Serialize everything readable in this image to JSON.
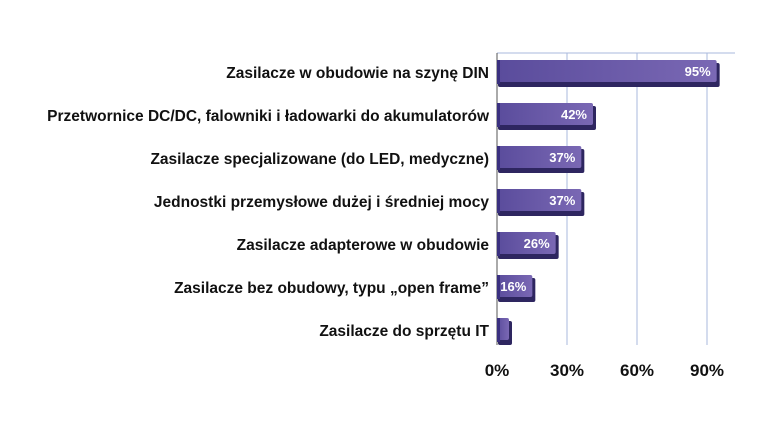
{
  "chart_data": {
    "type": "bar",
    "orientation": "horizontal",
    "title": "",
    "xlabel": "",
    "ylabel": "",
    "categories": [
      "Zasilacze w obudowie na szynę DIN",
      "Przetwornice DC/DC, falowniki i ładowarki do akumulatorów",
      "Zasilacze specjalizowane (do LED, medyczne)",
      "Jednostki przemysłowe dużej i średniej mocy",
      "Zasilacze adapterowe w obudowie",
      "Zasilacze bez obudowy, typu „open frame”",
      "Zasilacze do sprzętu IT"
    ],
    "values": [
      95,
      42,
      37,
      37,
      26,
      16,
      6
    ],
    "data_labels": [
      "95%",
      "42%",
      "37%",
      "37%",
      "26%",
      "16%",
      ""
    ],
    "xlim": [
      0,
      100
    ],
    "xticks": [
      0,
      30,
      60,
      90
    ],
    "xtick_labels": [
      "0%",
      "30%",
      "60%",
      "90%"
    ],
    "grid": true,
    "bar_color": "#6a5aa8",
    "bar_shadow_color": "#2e2660",
    "grid_color": "#a8b8dc"
  }
}
